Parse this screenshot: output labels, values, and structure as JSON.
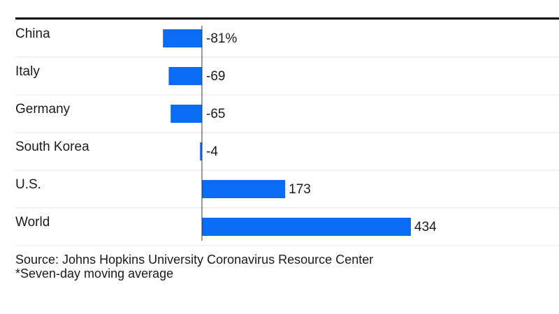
{
  "chart_data": {
    "type": "bar",
    "orientation": "horizontal",
    "categories": [
      "China",
      "Italy",
      "Germany",
      "South Korea",
      "U.S.",
      "World"
    ],
    "values": [
      -81,
      -69,
      -65,
      -4,
      173,
      434
    ],
    "value_labels": [
      "-81%",
      "-69",
      "-65",
      "-4",
      "173",
      "434"
    ],
    "bar_color": "#0a6cf5",
    "grid": false,
    "xlim": [
      -81,
      434
    ]
  },
  "footnotes": {
    "source": "Source: Johns Hopkins University Coronavirus Resource Center",
    "note": "*Seven-day moving average"
  }
}
